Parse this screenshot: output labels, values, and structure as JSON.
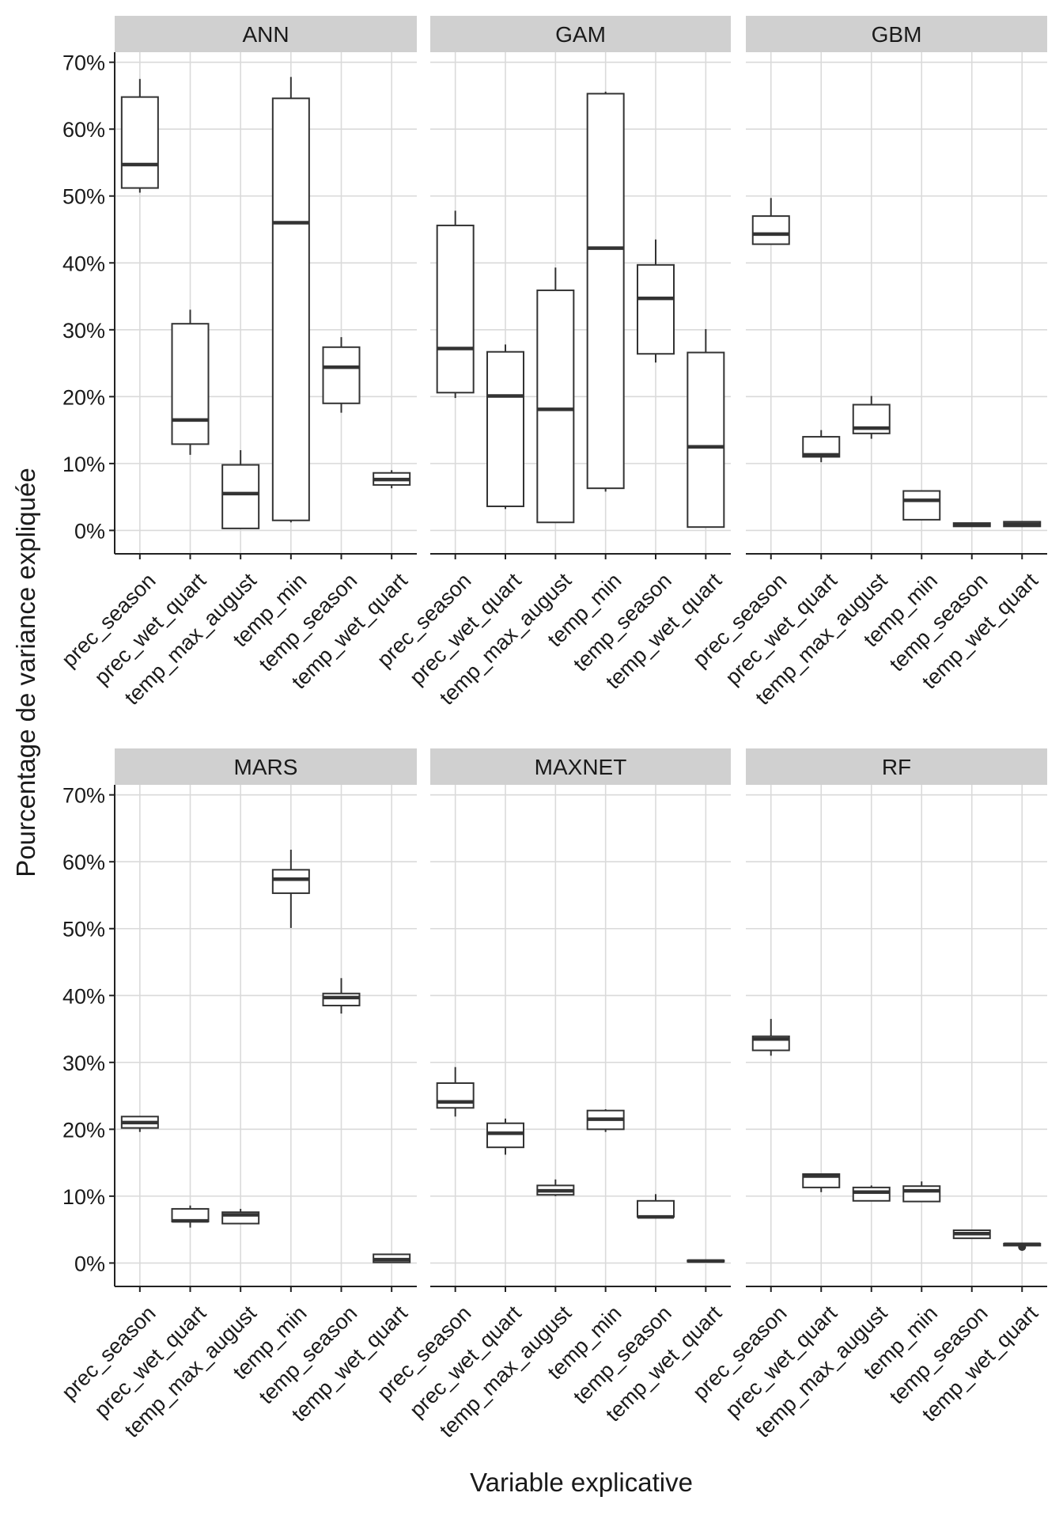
{
  "chart_data": {
    "type": "boxplot",
    "xlabel": "Variable explicative",
    "ylabel": "Pourcentage de variance expliquée",
    "ylim": [
      -3.5,
      71.5
    ],
    "yticks": [
      0,
      10,
      20,
      30,
      40,
      50,
      60,
      70
    ],
    "ytick_labels": [
      "0%",
      "10%",
      "20%",
      "30%",
      "40%",
      "50%",
      "60%",
      "70%"
    ],
    "categories": [
      "prec_season",
      "prec_wet_quart",
      "temp_max_august",
      "temp_min",
      "temp_season",
      "temp_wet_quart"
    ],
    "panels": [
      {
        "name": "ANN",
        "boxes": [
          {
            "min": 50.5,
            "q1": 51.2,
            "median": 54.7,
            "q3": 64.8,
            "max": 67.5
          },
          {
            "min": 11.3,
            "q1": 12.9,
            "median": 16.5,
            "q3": 30.9,
            "max": 33.0
          },
          {
            "min": 0.3,
            "q1": 0.3,
            "median": 5.5,
            "q3": 9.8,
            "max": 12.0
          },
          {
            "min": 1.2,
            "q1": 1.5,
            "median": 46.0,
            "q3": 64.6,
            "max": 67.8
          },
          {
            "min": 17.6,
            "q1": 19.0,
            "median": 24.4,
            "q3": 27.4,
            "max": 28.9
          },
          {
            "min": 6.3,
            "q1": 6.8,
            "median": 7.6,
            "q3": 8.6,
            "max": 9.0
          }
        ]
      },
      {
        "name": "GAM",
        "boxes": [
          {
            "min": 19.8,
            "q1": 20.6,
            "median": 27.2,
            "q3": 45.6,
            "max": 47.8
          },
          {
            "min": 3.2,
            "q1": 3.6,
            "median": 20.1,
            "q3": 26.7,
            "max": 27.8
          },
          {
            "min": 1.2,
            "q1": 1.2,
            "median": 18.1,
            "q3": 35.9,
            "max": 39.3
          },
          {
            "min": 5.8,
            "q1": 6.3,
            "median": 42.2,
            "q3": 65.3,
            "max": 65.6
          },
          {
            "min": 25.1,
            "q1": 26.4,
            "median": 34.7,
            "q3": 39.7,
            "max": 43.5
          },
          {
            "min": 0.5,
            "q1": 0.5,
            "median": 12.5,
            "q3": 26.6,
            "max": 30.1
          }
        ]
      },
      {
        "name": "GBM",
        "boxes": [
          {
            "min": 42.8,
            "q1": 42.8,
            "median": 44.3,
            "q3": 47.0,
            "max": 49.7
          },
          {
            "min": 10.2,
            "q1": 11.0,
            "median": 11.3,
            "q3": 14.0,
            "max": 15.0
          },
          {
            "min": 13.7,
            "q1": 14.5,
            "median": 15.3,
            "q3": 18.8,
            "max": 20.1
          },
          {
            "min": 1.6,
            "q1": 1.6,
            "median": 4.5,
            "q3": 5.9,
            "max": 5.9
          },
          {
            "min": 0.6,
            "q1": 0.6,
            "median": 0.8,
            "q3": 1.1,
            "max": 1.1
          },
          {
            "min": 0.5,
            "q1": 0.6,
            "median": 0.9,
            "q3": 1.3,
            "max": 1.3
          }
        ]
      },
      {
        "name": "MARS",
        "boxes": [
          {
            "min": 19.6,
            "q1": 20.2,
            "median": 21.0,
            "q3": 21.9,
            "max": 21.9
          },
          {
            "min": 5.3,
            "q1": 6.2,
            "median": 6.3,
            "q3": 8.1,
            "max": 8.6
          },
          {
            "min": 5.9,
            "q1": 5.9,
            "median": 7.2,
            "q3": 7.6,
            "max": 8.1
          },
          {
            "min": 50.1,
            "q1": 55.3,
            "median": 57.4,
            "q3": 58.8,
            "max": 61.8
          },
          {
            "min": 37.3,
            "q1": 38.5,
            "median": 39.7,
            "q3": 40.3,
            "max": 42.6
          },
          {
            "min": 0.1,
            "q1": 0.1,
            "median": 0.5,
            "q3": 1.3,
            "max": 1.3
          }
        ]
      },
      {
        "name": "MAXNET",
        "boxes": [
          {
            "min": 21.9,
            "q1": 23.2,
            "median": 24.1,
            "q3": 26.9,
            "max": 29.3
          },
          {
            "min": 16.2,
            "q1": 17.3,
            "median": 19.4,
            "q3": 20.9,
            "max": 21.6
          },
          {
            "min": 10.0,
            "q1": 10.2,
            "median": 10.8,
            "q3": 11.6,
            "max": 12.5
          },
          {
            "min": 19.6,
            "q1": 20.0,
            "median": 21.5,
            "q3": 22.8,
            "max": 23.0
          },
          {
            "min": 6.8,
            "q1": 6.9,
            "median": 6.9,
            "q3": 9.3,
            "max": 10.3
          },
          {
            "min": 0.2,
            "q1": 0.2,
            "median": 0.3,
            "q3": 0.4,
            "max": 0.4
          }
        ]
      },
      {
        "name": "RF",
        "boxes": [
          {
            "min": 31.0,
            "q1": 31.8,
            "median": 33.5,
            "q3": 33.9,
            "max": 36.5
          },
          {
            "min": 10.6,
            "q1": 11.3,
            "median": 13.0,
            "q3": 13.3,
            "max": 13.3
          },
          {
            "min": 9.3,
            "q1": 9.3,
            "median": 10.6,
            "q3": 11.3,
            "max": 11.6
          },
          {
            "min": 9.2,
            "q1": 9.2,
            "median": 10.8,
            "q3": 11.5,
            "max": 12.2
          },
          {
            "min": 3.7,
            "q1": 3.7,
            "median": 4.4,
            "q3": 4.9,
            "max": 4.9
          },
          {
            "min": 2.6,
            "q1": 2.6,
            "median": 2.8,
            "q3": 2.9,
            "max": 2.9,
            "outliers": [
              2.4
            ]
          }
        ]
      }
    ]
  }
}
